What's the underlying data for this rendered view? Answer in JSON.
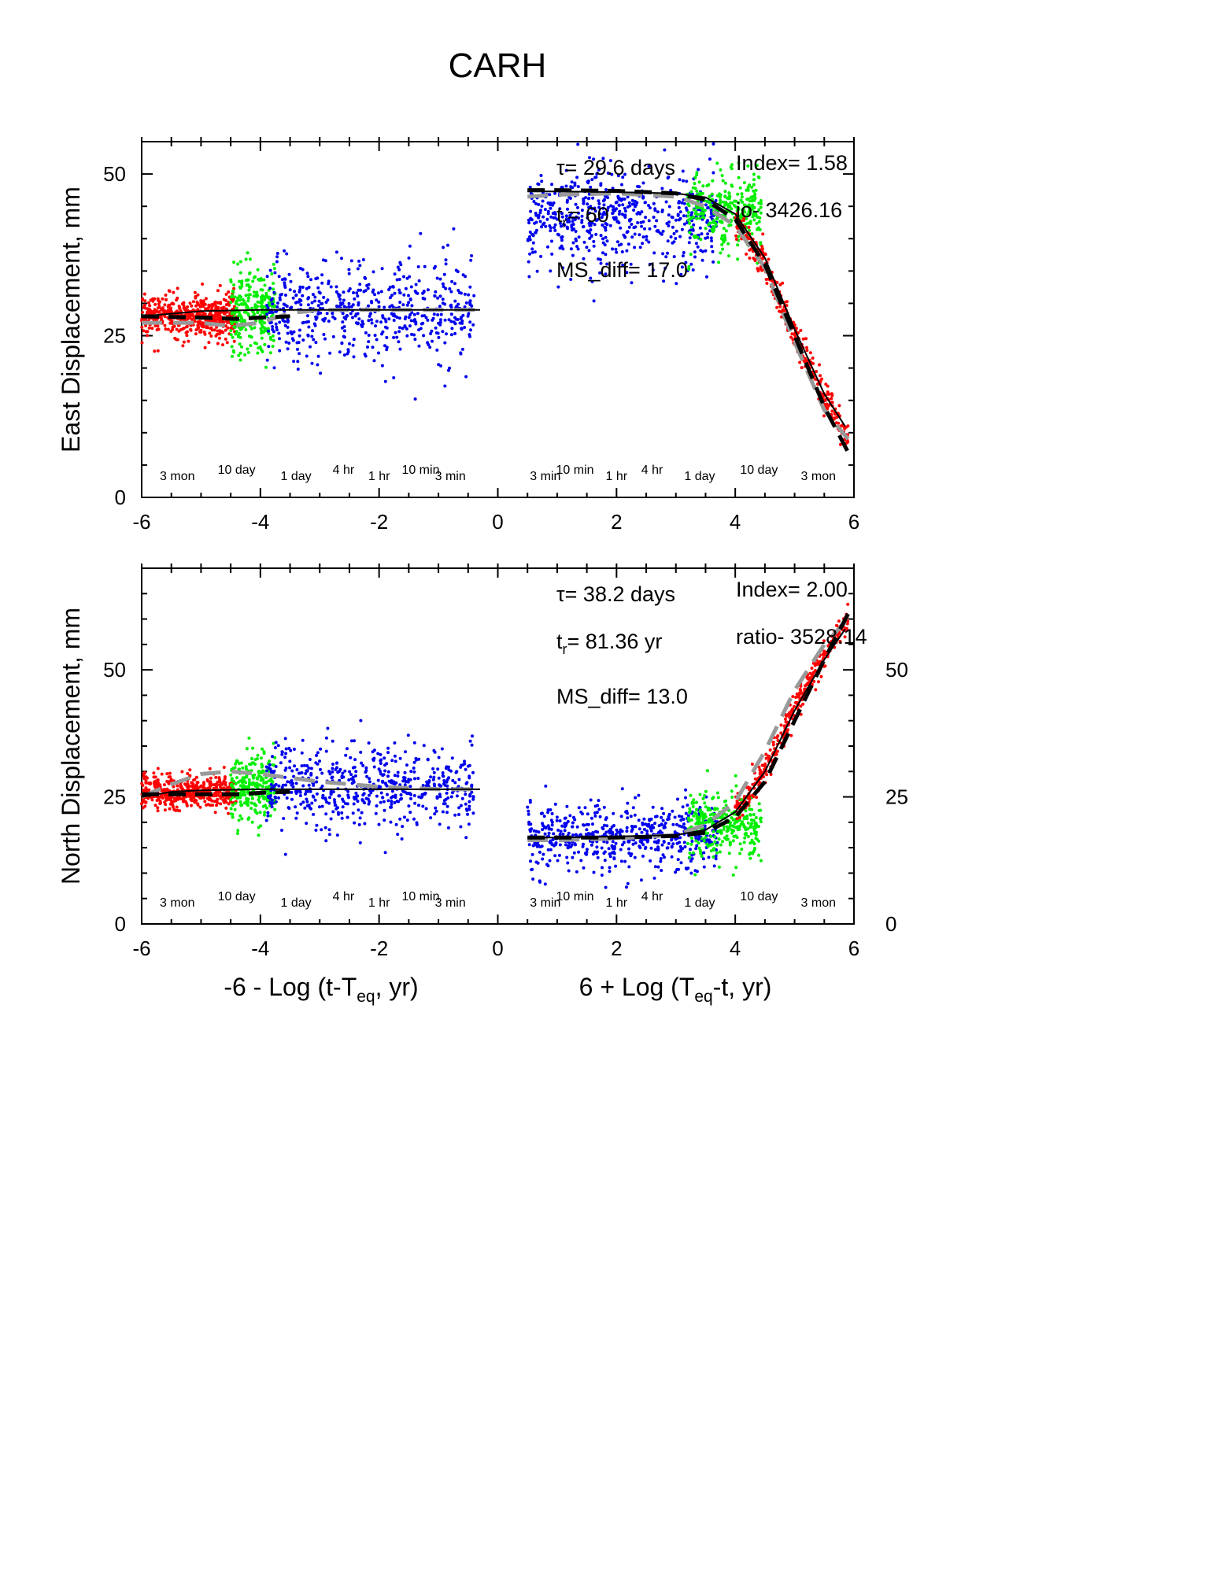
{
  "figure_title": "CARH",
  "colors": {
    "late_red": "#ff0000",
    "mid_green": "#00ee00",
    "early_blue": "#0000ee",
    "fit_black": "#000000",
    "fit_gray": "#999999"
  },
  "x_axis": {
    "left_label_parts": {
      "pre": "-6 - Log (t-T",
      "sub": "eq",
      "post": ", yr)"
    },
    "right_label_parts": {
      "pre": "6 + Log (T",
      "sub": "eq",
      "post": "-t, yr)"
    }
  },
  "chart_data": [
    {
      "type": "scatter",
      "name_label": "East Displacement, mm",
      "xlabel": "",
      "ylabel": "East Displacement, mm",
      "xlim": [
        -6,
        6
      ],
      "ylim": [
        0,
        55
      ],
      "x_ticks": [
        "-6",
        "-4",
        "-2",
        "0",
        "2",
        "4",
        "6"
      ],
      "y_ticks_left": [
        "0",
        "25",
        "50"
      ],
      "y_ticks_right": [],
      "time_labels_left": [
        {
          "x": -5.4,
          "text": "3 mon"
        },
        {
          "x": -4.4,
          "text": "10 day"
        },
        {
          "x": -3.4,
          "text": "1 day"
        },
        {
          "x": -2.6,
          "text": "4 hr"
        },
        {
          "x": -2.0,
          "text": "1 hr"
        },
        {
          "x": -1.3,
          "text": "10 min"
        },
        {
          "x": -0.8,
          "text": "3 min"
        }
      ],
      "time_labels_right": [
        {
          "x": 0.8,
          "text": "3 min"
        },
        {
          "x": 1.3,
          "text": "10 min"
        },
        {
          "x": 2.0,
          "text": "1 hr"
        },
        {
          "x": 2.6,
          "text": "4 hr"
        },
        {
          "x": 3.4,
          "text": "1 day"
        },
        {
          "x": 4.4,
          "text": "10 day"
        },
        {
          "x": 5.4,
          "text": "3 mon"
        }
      ],
      "annotations": {
        "tau_prefix": "τ",
        "tau_value": "= 29.6 days",
        "tr_prefix": "t",
        "tr_sub": "r",
        "tr_value": "= 60",
        "ms_diff": "MS_diff= 17.0",
        "index": "Index= 1.58",
        "ratio": "io- 3426.16"
      },
      "series_left": [
        {
          "color_key": "late_red",
          "x": [
            -6.0,
            -4.4
          ],
          "y_center": 28.0,
          "spread": 1.6,
          "n": 520
        },
        {
          "color_key": "mid_green",
          "x": [
            -4.5,
            -3.75
          ],
          "y_center": 29.0,
          "spread": 3.0,
          "n": 260
        },
        {
          "color_key": "early_blue",
          "x": [
            -3.9,
            -0.4
          ],
          "y_center": 29.0,
          "spread": 3.8,
          "n": 560
        }
      ],
      "series_right": [
        {
          "color_key": "early_blue",
          "x": [
            0.5,
            3.7
          ],
          "y_center": 43.5,
          "spread": 3.6,
          "n": 560
        },
        {
          "color_key": "mid_green",
          "x": [
            3.2,
            4.45
          ],
          "y_center": 44.5,
          "spread": 2.8,
          "n": 300
        },
        {
          "color_key": "late_red",
          "x": [
            4.0,
            5.9
          ],
          "y_center": 0,
          "spread": 1.2,
          "n": 320
        }
      ],
      "fit_left_black": {
        "x": [
          -6.0,
          -5.0,
          -4.0,
          -3.0,
          -2.0,
          -1.0,
          -0.3
        ],
        "y": [
          28.0,
          28.8,
          29.0,
          29.0,
          29.0,
          29.0,
          29.0
        ]
      },
      "fit_left_dashed_black": {
        "x": [
          -6.0,
          -5.0,
          -4.4,
          -4.0,
          -3.5
        ],
        "y": [
          28.0,
          27.8,
          27.6,
          27.8,
          28.0
        ]
      },
      "fit_left_gray": {
        "x": [
          -6.0,
          -5.0,
          -4.5,
          -4.0,
          -3.5,
          -3.0,
          -2.0,
          -1.0,
          -0.3
        ],
        "y": [
          27.0,
          27.0,
          26.5,
          27.0,
          28.5,
          29.0,
          29.0,
          29.0,
          29.0
        ]
      },
      "fit_right_black": {
        "x": [
          0.5,
          1.0,
          2.0,
          3.0,
          3.5,
          4.0,
          4.5,
          5.0,
          5.5,
          5.85
        ],
        "y": [
          47.3,
          47.3,
          47.2,
          47.0,
          46.4,
          43.8,
          37.0,
          26.0,
          16.0,
          11.0
        ]
      },
      "fit_right_dashed_black": {
        "x": [
          0.5,
          1.0,
          2.0,
          3.0,
          3.5,
          4.0,
          4.5,
          5.0,
          5.5,
          5.9
        ],
        "y": [
          47.5,
          47.5,
          47.4,
          47.0,
          46.0,
          43.0,
          36.0,
          25.0,
          14.0,
          7.0
        ]
      },
      "fit_right_gray": {
        "x": [
          0.5,
          1.0,
          2.0,
          3.0,
          3.5,
          4.0,
          4.5,
          5.0,
          5.5,
          5.9
        ],
        "y": [
          46.5,
          46.8,
          47.0,
          46.5,
          45.0,
          42.0,
          35.5,
          24.0,
          13.5,
          9.0
        ]
      },
      "red_right_curve": {
        "x": [
          4.0,
          4.5,
          5.0,
          5.5,
          5.9
        ],
        "y": [
          43.0,
          36.0,
          25.5,
          15.5,
          9.5
        ]
      }
    },
    {
      "type": "scatter",
      "name_label": "North Displacement, mm",
      "xlabel": "",
      "ylabel": "North Displacement, mm",
      "xlim": [
        -6,
        6
      ],
      "ylim": [
        0,
        70
      ],
      "x_ticks": [
        "-6",
        "-4",
        "-2",
        "0",
        "2",
        "4",
        "6"
      ],
      "y_ticks_left": [
        "0",
        "25",
        "50"
      ],
      "y_ticks_right": [
        "0",
        "25",
        "50"
      ],
      "time_labels_left": [
        {
          "x": -5.4,
          "text": "3 mon"
        },
        {
          "x": -4.4,
          "text": "10 day"
        },
        {
          "x": -3.4,
          "text": "1 day"
        },
        {
          "x": -2.6,
          "text": "4 hr"
        },
        {
          "x": -2.0,
          "text": "1 hr"
        },
        {
          "x": -1.3,
          "text": "10 min"
        },
        {
          "x": -0.8,
          "text": "3 min"
        }
      ],
      "time_labels_right": [
        {
          "x": 0.8,
          "text": "3 min"
        },
        {
          "x": 1.3,
          "text": "10 min"
        },
        {
          "x": 2.0,
          "text": "1 hr"
        },
        {
          "x": 2.6,
          "text": "4 hr"
        },
        {
          "x": 3.4,
          "text": "1 day"
        },
        {
          "x": 4.4,
          "text": "10 day"
        },
        {
          "x": 5.4,
          "text": "3 mon"
        }
      ],
      "annotations": {
        "tau_prefix": "τ",
        "tau_value": "= 38.2 days",
        "tr_prefix": "t",
        "tr_sub": "r",
        "tr_value": "= 81.36 yr",
        "ms_diff": "MS_diff= 13.0",
        "index": "Index= 2.00",
        "ratio": "ratio- 3528.14"
      },
      "series_left": [
        {
          "color_key": "late_red",
          "x": [
            -6.0,
            -4.4
          ],
          "y_center": 26.0,
          "spread": 1.6,
          "n": 520
        },
        {
          "color_key": "mid_green",
          "x": [
            -4.5,
            -3.75
          ],
          "y_center": 27.0,
          "spread": 3.2,
          "n": 260
        },
        {
          "color_key": "early_blue",
          "x": [
            -3.9,
            -0.4
          ],
          "y_center": 27.0,
          "spread": 4.0,
          "n": 560
        }
      ],
      "series_right": [
        {
          "color_key": "early_blue",
          "x": [
            0.5,
            3.7
          ],
          "y_center": 17.5,
          "spread": 3.2,
          "n": 560
        },
        {
          "color_key": "mid_green",
          "x": [
            3.2,
            4.45
          ],
          "y_center": 20.0,
          "spread": 3.0,
          "n": 300
        },
        {
          "color_key": "late_red",
          "x": [
            4.0,
            5.9
          ],
          "y_center": 0,
          "spread": 1.4,
          "n": 320
        }
      ],
      "fit_left_black": {
        "x": [
          -6.0,
          -5.5,
          -5.0,
          -4.0,
          -3.0,
          -2.0,
          -1.0,
          -0.3
        ],
        "y": [
          25.0,
          26.0,
          26.3,
          26.5,
          26.5,
          26.5,
          26.5,
          26.5
        ]
      },
      "fit_left_dashed_black": {
        "x": [
          -6.0,
          -5.0,
          -4.4,
          -4.0,
          -3.5
        ],
        "y": [
          25.5,
          25.5,
          25.5,
          25.8,
          26.0
        ]
      },
      "fit_left_gray": {
        "x": [
          -6.0,
          -5.5,
          -5.0,
          -4.5,
          -4.0,
          -3.0,
          -2.0,
          -1.0,
          -0.3
        ],
        "y": [
          25.0,
          27.5,
          29.5,
          30.0,
          29.5,
          28.0,
          27.0,
          26.5,
          26.5
        ]
      },
      "fit_right_black": {
        "x": [
          0.5,
          1.0,
          2.0,
          3.0,
          3.5,
          4.0,
          4.5,
          5.0,
          5.5,
          5.85
        ],
        "y": [
          17.0,
          17.0,
          17.2,
          17.5,
          18.5,
          22.0,
          30.0,
          42.0,
          52.0,
          58.0
        ]
      },
      "fit_right_dashed_black": {
        "x": [
          0.5,
          1.0,
          2.0,
          3.0,
          3.5,
          4.0,
          4.5,
          5.0,
          5.5,
          5.9
        ],
        "y": [
          17.0,
          17.0,
          17.0,
          17.3,
          18.0,
          21.0,
          28.0,
          40.0,
          52.0,
          61.0
        ]
      },
      "fit_right_gray": {
        "x": [
          0.5,
          1.0,
          2.0,
          3.0,
          3.5,
          4.0,
          4.5,
          5.0,
          5.5,
          5.9
        ],
        "y": [
          16.5,
          16.5,
          16.8,
          17.5,
          19.5,
          24.0,
          34.0,
          46.0,
          55.0,
          60.0
        ]
      },
      "red_right_curve": {
        "x": [
          4.0,
          4.5,
          5.0,
          5.5,
          5.9
        ],
        "y": [
          22.0,
          30.0,
          42.5,
          53.0,
          60.0
        ]
      }
    }
  ]
}
